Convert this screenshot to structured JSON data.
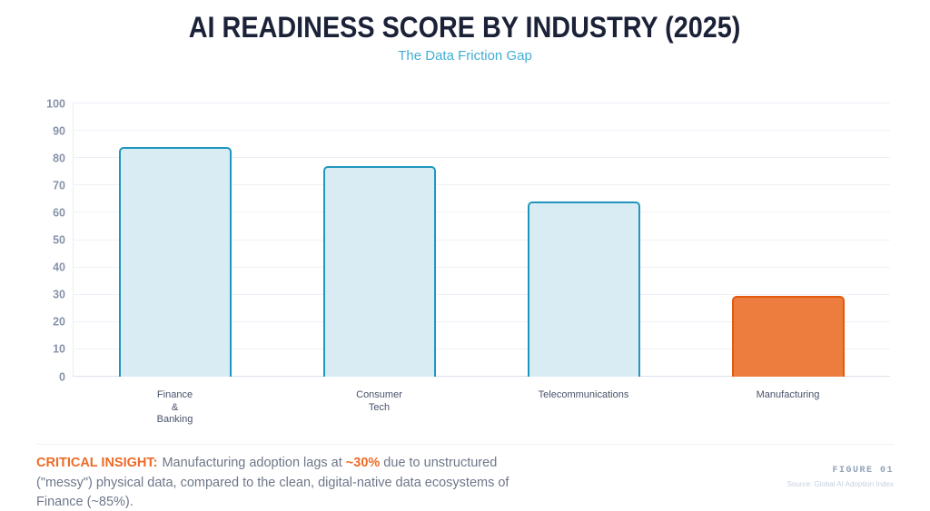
{
  "header": {
    "title": "AI READINESS SCORE BY INDUSTRY (2025)",
    "subtitle": "The Data Friction Gap"
  },
  "chart_data": {
    "type": "bar",
    "title": "AI READINESS SCORE BY INDUSTRY (2025)",
    "subtitle": "The Data Friction Gap",
    "categories": [
      "Finance & Banking",
      "Consumer Tech",
      "Telecommunications",
      "Manufacturing"
    ],
    "category_label_lines": [
      [
        "Finance",
        "&",
        "Banking"
      ],
      [
        "Consumer",
        "Tech"
      ],
      [
        "Telecommunications"
      ],
      [
        "Manufacturing"
      ]
    ],
    "values": [
      84,
      77,
      64,
      29.5
    ],
    "xlabel": "",
    "ylabel": "",
    "ylim": [
      0,
      100
    ],
    "yticks": [
      0,
      10,
      20,
      30,
      40,
      50,
      60,
      70,
      80,
      90,
      100
    ],
    "grid": true,
    "legend": "none",
    "highlighted_category": "Manufacturing",
    "bar_styles": [
      {
        "fill": "#d9ecf4",
        "border": "#2096be"
      },
      {
        "fill": "#d9ecf4",
        "border": "#2096be"
      },
      {
        "fill": "#d9ecf4",
        "border": "#2096be"
      },
      {
        "fill": "#ec7d3e",
        "border": "#e25a0e"
      }
    ]
  },
  "colors": {
    "title": "#1b2238",
    "subtitle": "#41aed4",
    "accent_orange": "#ed6b27",
    "bar_blue_fill": "#d9ecf4",
    "bar_blue_border": "#2096be",
    "bar_orange_fill": "#ec7d3e",
    "bar_orange_border": "#e25a0e"
  },
  "footer": {
    "insight_label": "CRITICAL INSIGHT:",
    "insight_text_1": "Manufacturing adoption lags at ",
    "insight_highlight": "~30%",
    "insight_text_2": " due to unstructured (\"messy\") physical data, compared to the clean, digital-native data ecosystems of Finance (~85%).",
    "figure_label": "FIGURE 01",
    "source": "Source: Global AI Adoption Index"
  }
}
